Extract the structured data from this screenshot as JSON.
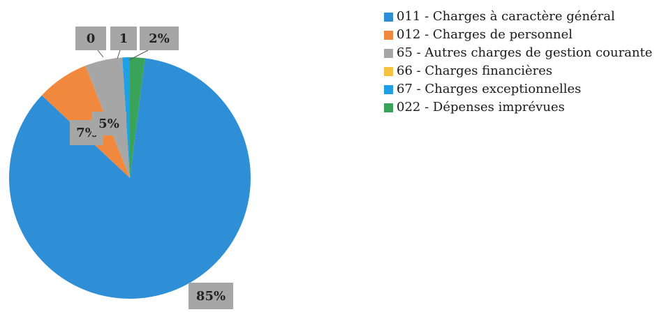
{
  "chart_data": {
    "type": "pie",
    "title": "",
    "slices": [
      {
        "label": "011 - Charges à caractère général",
        "value": 85,
        "display": "85%",
        "color": "#2e8fd6"
      },
      {
        "label": "012 - Charges de personnel",
        "value": 7,
        "display": "7%",
        "color": "#f0883e"
      },
      {
        "label": "65 - Autres charges de gestion courante",
        "value": 5,
        "display": "5%",
        "color": "#a6a6a6"
      },
      {
        "label": "66 - Charges financières",
        "value": 0,
        "display": "0",
        "color": "#f5c242"
      },
      {
        "label": "67 - Charges exceptionnelles",
        "value": 1,
        "display": "1",
        "color": "#1fa0e6"
      },
      {
        "label": "022 - Dépenses imprévues",
        "value": 2,
        "display": "2%",
        "color": "#3aa35a"
      }
    ],
    "legend_position": "right"
  }
}
